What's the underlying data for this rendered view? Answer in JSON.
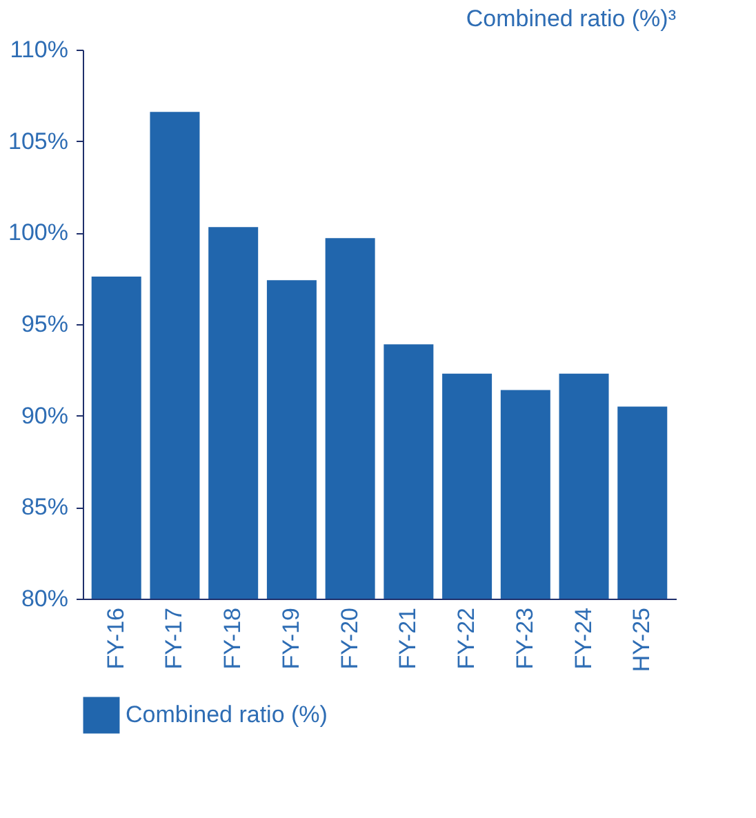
{
  "chart_data": {
    "type": "bar",
    "title": "Combined ratio (%)³",
    "categories": [
      "FY-16",
      "FY-17",
      "FY-18",
      "FY-19",
      "FY-20",
      "FY-21",
      "FY-22",
      "FY-23",
      "FY-24",
      "HY-25"
    ],
    "series": [
      {
        "name": "Combined ratio (%)",
        "color": "#2166ad",
        "values": [
          97.6,
          106.6,
          100.3,
          97.4,
          99.7,
          93.9,
          92.3,
          91.4,
          92.3,
          90.5
        ]
      }
    ],
    "ylim": [
      80,
      110
    ],
    "yticks": [
      {
        "value": 80,
        "label": "80%"
      },
      {
        "value": 85,
        "label": "85%"
      },
      {
        "value": 90,
        "label": "90%"
      },
      {
        "value": 95,
        "label": "95%"
      },
      {
        "value": 100,
        "label": "100%"
      },
      {
        "value": 105,
        "label": "105%"
      },
      {
        "value": 110,
        "label": "110%"
      }
    ],
    "grid": false,
    "legend": "bottom"
  }
}
